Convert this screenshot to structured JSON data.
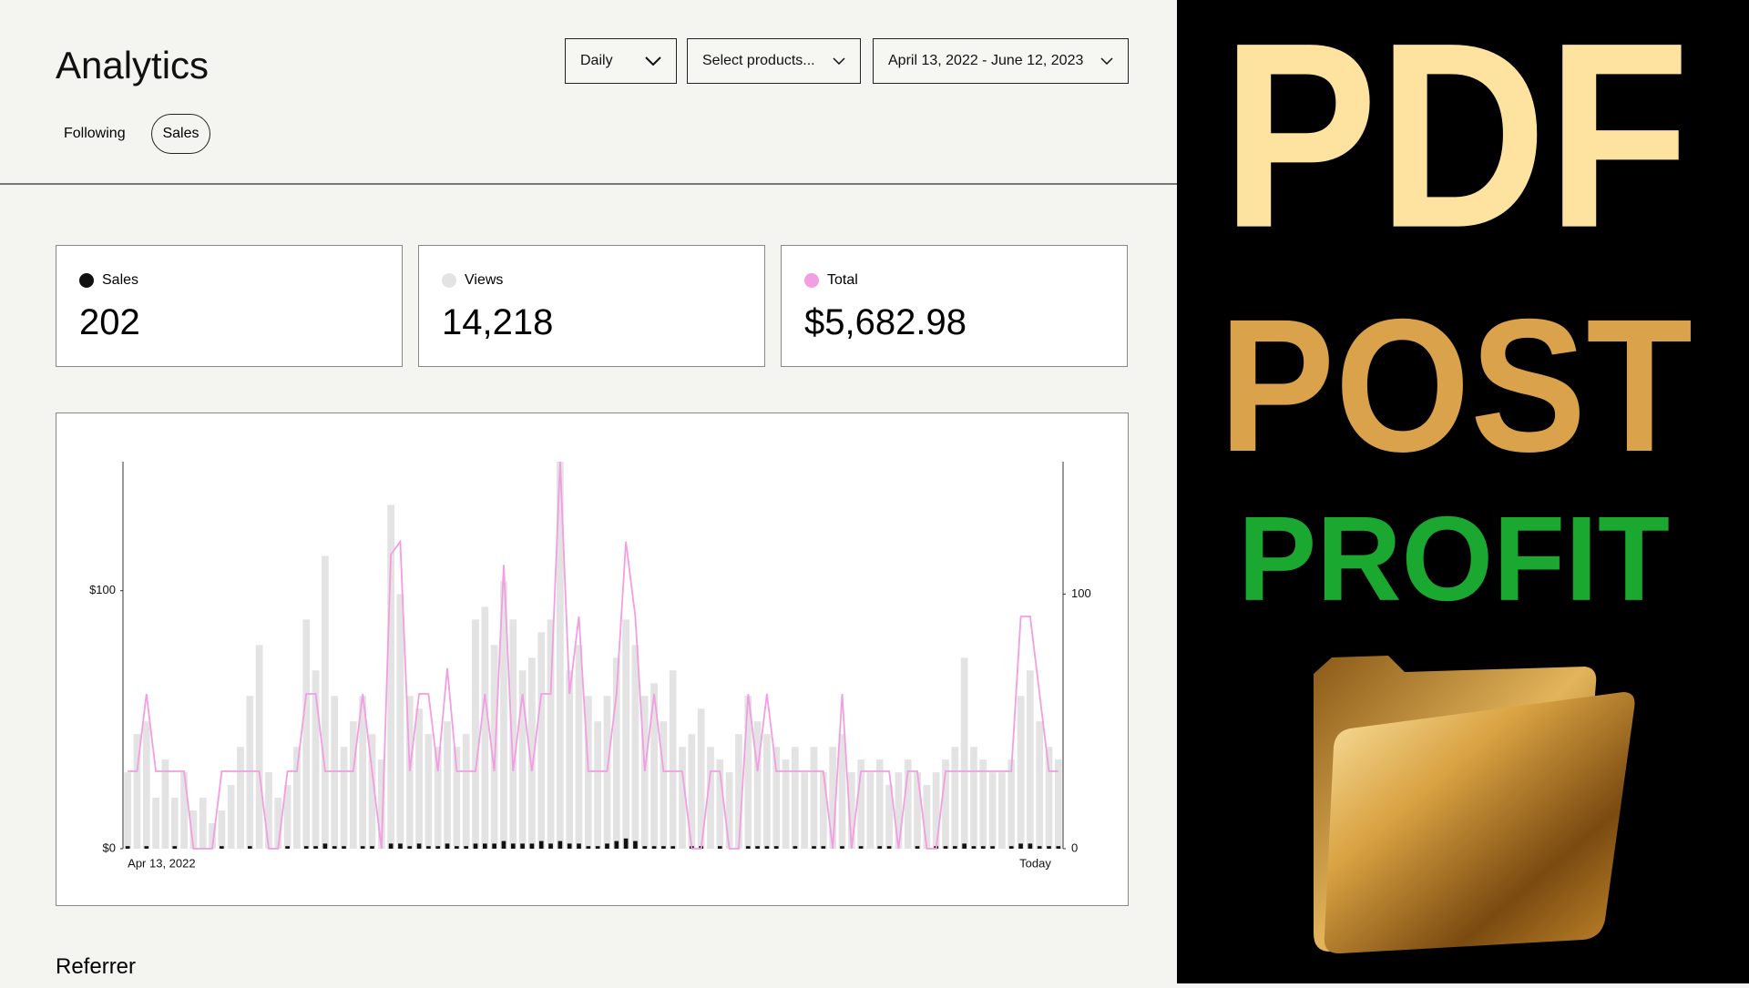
{
  "header": {
    "title": "Analytics",
    "filters": [
      "Daily",
      "Select products...",
      "April 13, 2022 - June 12, 2023"
    ],
    "tabs": [
      "Following",
      "Sales"
    ]
  },
  "chart_data": {
    "type": "combo",
    "categories": [
      "Apr 13, 2022",
      null,
      null,
      null,
      null,
      null,
      null,
      null,
      null,
      null,
      null,
      null,
      null,
      null,
      null,
      null,
      null,
      null,
      null,
      null,
      null,
      null,
      null,
      null,
      null,
      null,
      null,
      null,
      null,
      null,
      null,
      null,
      null,
      null,
      null,
      null,
      null,
      null,
      null,
      null,
      null,
      null,
      null,
      null,
      null,
      null,
      null,
      null,
      null,
      null,
      null,
      null,
      null,
      null,
      null,
      null,
      null,
      null,
      null,
      null,
      null,
      null,
      null,
      null,
      null,
      null,
      null,
      null,
      null,
      null,
      null,
      null,
      null,
      null,
      null,
      null,
      null,
      null,
      null,
      null,
      null,
      null,
      null,
      null,
      null,
      null,
      null,
      null,
      null,
      null,
      null,
      null,
      null,
      null,
      null,
      null,
      null,
      null,
      null,
      "Today"
    ],
    "ylim": [
      0,
      150
    ],
    "yticks": [
      {
        "value": 0,
        "label": "$0"
      },
      {
        "value": 100,
        "label": "$100"
      }
    ],
    "y2lim": [
      0,
      152
    ],
    "y2ticks": [
      0,
      100
    ],
    "series": [
      {
        "name": "Sales",
        "summary": "202",
        "color": "#111111",
        "type": "bar",
        "axis": "y2",
        "values": [
          1,
          0,
          1,
          0,
          0,
          1,
          0,
          0,
          0,
          0,
          1,
          0,
          0,
          1,
          0,
          0,
          0,
          1,
          0,
          1,
          1,
          2,
          1,
          1,
          0,
          1,
          1,
          0,
          2,
          2,
          1,
          2,
          1,
          1,
          2,
          1,
          1,
          2,
          2,
          2,
          3,
          2,
          2,
          2,
          3,
          2,
          3,
          2,
          2,
          1,
          1,
          2,
          3,
          4,
          3,
          1,
          1,
          1,
          1,
          0,
          1,
          1,
          0,
          1,
          0,
          0,
          1,
          1,
          1,
          1,
          0,
          1,
          0,
          1,
          1,
          0,
          1,
          0,
          1,
          0,
          1,
          1,
          0,
          0,
          1,
          0,
          1,
          1,
          1,
          2,
          1,
          1,
          1,
          0,
          1,
          2,
          2,
          1,
          1,
          1
        ]
      },
      {
        "name": "Views",
        "summary": "14,218",
        "color": "#e3e3e3",
        "type": "bar",
        "axis": "y2",
        "values": [
          30,
          45,
          50,
          20,
          35,
          20,
          30,
          15,
          20,
          10,
          15,
          25,
          40,
          60,
          80,
          30,
          20,
          25,
          40,
          90,
          70,
          115,
          60,
          40,
          50,
          60,
          45,
          35,
          135,
          100,
          60,
          55,
          45,
          40,
          50,
          40,
          45,
          90,
          95,
          80,
          105,
          90,
          70,
          75,
          85,
          90,
          152,
          70,
          80,
          60,
          50,
          60,
          75,
          90,
          80,
          60,
          65,
          50,
          70,
          40,
          45,
          55,
          40,
          35,
          30,
          45,
          60,
          50,
          45,
          40,
          35,
          40,
          30,
          40,
          30,
          40,
          45,
          30,
          35,
          30,
          35,
          25,
          30,
          35,
          30,
          25,
          30,
          35,
          40,
          75,
          40,
          35,
          30,
          30,
          35,
          60,
          70,
          50,
          40,
          35
        ]
      },
      {
        "name": "Total",
        "summary": "$5,682.98",
        "color": "#f39de3",
        "type": "line",
        "axis": "y",
        "values": [
          30,
          30,
          60,
          30,
          30,
          30,
          30,
          0,
          0,
          0,
          30,
          30,
          30,
          30,
          30,
          0,
          0,
          30,
          30,
          60,
          60,
          30,
          30,
          30,
          30,
          60,
          30,
          0,
          114,
          119,
          30,
          60,
          60,
          30,
          70,
          30,
          30,
          30,
          60,
          30,
          110,
          30,
          60,
          30,
          60,
          60,
          150,
          60,
          90,
          30,
          30,
          30,
          60,
          119,
          90,
          30,
          60,
          30,
          30,
          30,
          0,
          0,
          30,
          30,
          0,
          0,
          60,
          30,
          60,
          30,
          30,
          30,
          30,
          30,
          30,
          0,
          60,
          0,
          30,
          30,
          30,
          30,
          0,
          30,
          30,
          0,
          0,
          30,
          30,
          30,
          30,
          30,
          30,
          30,
          30,
          90,
          90,
          60,
          30,
          30
        ]
      }
    ]
  },
  "referrer": "Referrer",
  "promo": [
    "PDF",
    "POST",
    "PROFIT"
  ]
}
